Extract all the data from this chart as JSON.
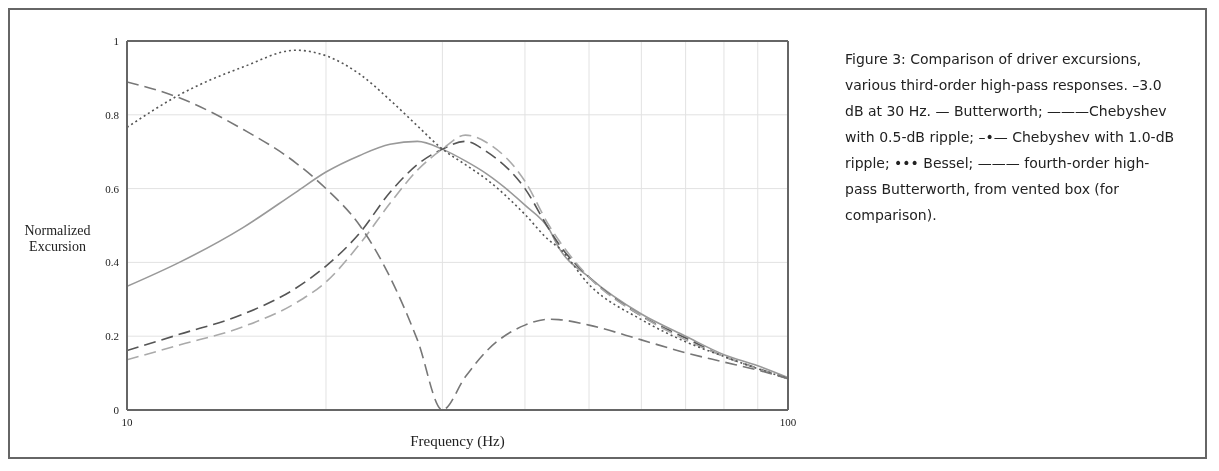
{
  "chart_data": {
    "type": "line",
    "xlabel": "Frequency (Hz)",
    "ylabel": "Normalized Excursion",
    "annotations": [
      "Figure 3: Comparison of driver excursions, various third-order high-pass responses. –3.0 dB at 30 Hz. — Butterworth; ———Chebyshev with 0.5-dB ripple; –•— Chebyshev with 1.0-dB ripple; ••• Bessel; ——— fourth-order high-pass Butterworth, from vented box (for comparison)."
    ],
    "x": [
      10,
      12,
      15,
      18,
      20,
      22.5,
      25,
      27.5,
      30,
      32.5,
      35,
      40,
      43.5,
      45,
      50,
      60,
      70,
      80,
      90,
      100
    ],
    "series": [
      {
        "color": "#999999",
        "line_style": "solid",
        "values": [
          0.335,
          0.4,
          0.495,
          0.59,
          0.645,
          0.69,
          0.72,
          0.728,
          0.707,
          0.675,
          0.64,
          0.555,
          0.49,
          0.44,
          0.36,
          0.26,
          0.2,
          0.15,
          0.12,
          0.088
        ]
      },
      {
        "color": "#555555",
        "line_style": "dashed",
        "values": [
          0.161,
          0.205,
          0.26,
          0.33,
          0.39,
          0.48,
          0.59,
          0.665,
          0.707,
          0.728,
          0.7,
          0.6,
          0.49,
          0.45,
          0.36,
          0.255,
          0.195,
          0.145,
          0.113,
          0.085
        ]
      },
      {
        "color": "#aaaaaa",
        "line_style": "dashed",
        "values": [
          0.136,
          0.176,
          0.226,
          0.29,
          0.347,
          0.45,
          0.56,
          0.65,
          0.707,
          0.745,
          0.725,
          0.62,
          0.5,
          0.46,
          0.36,
          0.255,
          0.19,
          0.145,
          0.112,
          0.085
        ]
      },
      {
        "color": "#555555",
        "line_style": "dotted",
        "values": [
          0.766,
          0.854,
          0.93,
          0.975,
          0.96,
          0.91,
          0.84,
          0.77,
          0.707,
          0.665,
          0.625,
          0.53,
          0.46,
          0.44,
          0.34,
          0.245,
          0.185,
          0.145,
          0.112,
          0.085
        ]
      },
      {
        "color": "#777777",
        "line_style": "dashed",
        "values": [
          0.889,
          0.846,
          0.76,
          0.67,
          0.6,
          0.5,
          0.36,
          0.19,
          0,
          0.09,
          0.16,
          0.23,
          0.246,
          0.245,
          0.23,
          0.19,
          0.155,
          0.13,
          0.108,
          0.085
        ]
      }
    ],
    "xlim": [
      10,
      100
    ],
    "xticks": [
      10,
      {
        "value": 20,
        "label": null
      },
      {
        "value": 30,
        "label": null
      },
      {
        "value": 40,
        "label": null
      },
      {
        "value": 50,
        "label": null
      },
      {
        "value": 60,
        "label": null
      },
      {
        "value": 70,
        "label": null
      },
      {
        "value": 80,
        "label": null
      },
      {
        "value": 90,
        "label": null
      },
      100
    ],
    "ylim": [
      0,
      1
    ],
    "yticks": [
      0,
      0.2,
      0.4,
      0.6,
      0.8,
      1
    ],
    "log": "x",
    "grid": true,
    "legend": false,
    "marker": "none"
  }
}
